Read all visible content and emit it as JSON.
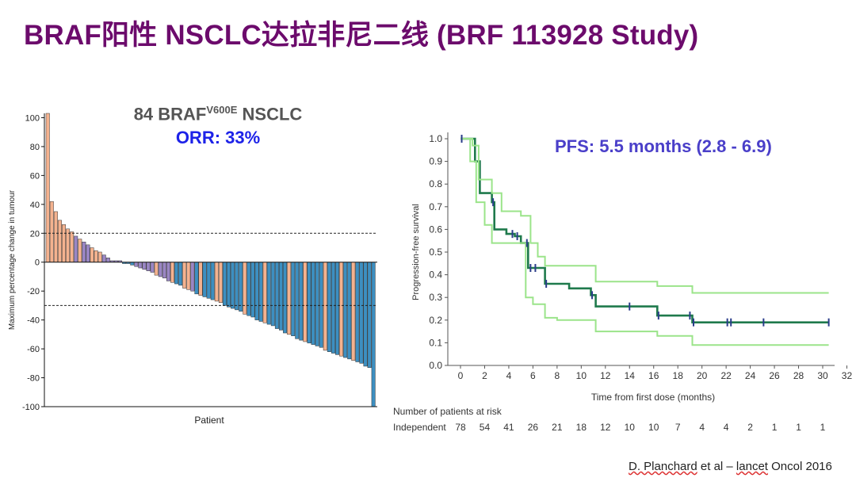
{
  "slide": {
    "title": "BRAF阳性 NSCLC达拉非尼二线 (BRF 113928 Study)",
    "citation_author": "D. Planchard",
    "citation_rest": " et al – ",
    "citation_journal": "lancet",
    "citation_end": " Oncol 2016"
  },
  "waterfall": {
    "subtitle_prefix": "84 BRAF",
    "subtitle_sup": "V600E",
    "subtitle_suffix": " NSCLC",
    "orr_label": "ORR: 33%"
  },
  "pfs": {
    "label": "PFS: 5.5 months (2.8 - 6.9)",
    "risk_header": "Number of patients at risk",
    "risk_row_label": "Independent"
  },
  "colors": {
    "title": "#6c0b6c",
    "bar_salmon": "#f4b28f",
    "bar_purple": "#9a86c4",
    "bar_blue": "#3d8fc1",
    "km_median": "#1f7a4c",
    "km_ci": "#9be48a",
    "censor": "#2a3c8a"
  },
  "chart_data": [
    {
      "type": "bar",
      "title": "",
      "xlabel": "Patient",
      "ylabel": "Maximum percentage change in tumour",
      "ylim": [
        -100,
        110
      ],
      "yticks": [
        100,
        80,
        60,
        40,
        20,
        0,
        -20,
        -40,
        -60,
        -80,
        -100
      ],
      "reference_lines": [
        20,
        -30
      ],
      "grid": false,
      "values": [
        110,
        42,
        35,
        29,
        26,
        23,
        21,
        18,
        16,
        14,
        12,
        10,
        8,
        7,
        5,
        3,
        1,
        1,
        1,
        -1,
        -1,
        -2,
        -3,
        -4,
        -5,
        -6,
        -7,
        -9,
        -10,
        -11,
        -13,
        -14,
        -15,
        -16,
        -18,
        -19,
        -20,
        -22,
        -23,
        -24,
        -25,
        -26,
        -27,
        -28,
        -30,
        -31,
        -32,
        -33,
        -34,
        -36,
        -37,
        -38,
        -40,
        -41,
        -42,
        -43,
        -44,
        -46,
        -47,
        -49,
        -50,
        -51,
        -53,
        -54,
        -55,
        -56,
        -57,
        -58,
        -59,
        -61,
        -62,
        -63,
        -64,
        -65,
        -66,
        -67,
        -68,
        -69,
        -70,
        -72,
        -73,
        -100
      ],
      "colors": [
        "s",
        "s",
        "s",
        "s",
        "s",
        "s",
        "s",
        "p",
        "s",
        "p",
        "p",
        "s",
        "s",
        "s",
        "p",
        "p",
        "p",
        "p",
        "p",
        "b",
        "b",
        "b",
        "p",
        "p",
        "p",
        "p",
        "p",
        "s",
        "p",
        "p",
        "p",
        "s",
        "b",
        "b",
        "s",
        "s",
        "p",
        "b",
        "s",
        "b",
        "b",
        "b",
        "s",
        "s",
        "b",
        "b",
        "b",
        "b",
        "b",
        "s",
        "b",
        "b",
        "b",
        "b",
        "s",
        "b",
        "b",
        "b",
        "b",
        "b",
        "s",
        "b",
        "b",
        "b",
        "s",
        "b",
        "b",
        "b",
        "b",
        "s",
        "b",
        "b",
        "b",
        "s",
        "b",
        "b",
        "s",
        "b",
        "b",
        "b",
        "b",
        "b"
      ]
    },
    {
      "type": "line",
      "title": "",
      "xlabel": "Time from first dose (months)",
      "ylabel": "Progression-free survival",
      "xlim": [
        0,
        32
      ],
      "ylim": [
        0,
        1.0
      ],
      "xticks": [
        0,
        2,
        4,
        6,
        8,
        10,
        12,
        14,
        16,
        18,
        20,
        22,
        24,
        26,
        28,
        30,
        32
      ],
      "yticks": [
        0,
        0.1,
        0.2,
        0.3,
        0.4,
        0.5,
        0.6,
        0.7,
        0.8,
        0.9,
        1.0
      ],
      "series": [
        {
          "role": "median",
          "x": [
            0,
            1.2,
            1.6,
            2.6,
            2.8,
            3.8,
            4.5,
            5.0,
            5.6,
            6.0,
            7.0,
            9.0,
            10.8,
            11.2,
            16.3,
            19.2,
            30.5
          ],
          "y": [
            1.0,
            0.9,
            0.76,
            0.72,
            0.6,
            0.58,
            0.57,
            0.54,
            0.43,
            0.43,
            0.36,
            0.34,
            0.31,
            0.26,
            0.22,
            0.19,
            0.19
          ]
        },
        {
          "role": "upper_ci",
          "x": [
            0,
            1.0,
            1.5,
            2.6,
            3.4,
            5.0,
            5.8,
            6.4,
            7.0,
            11.2,
            16.3,
            19.2,
            30.5
          ],
          "y": [
            1.0,
            0.97,
            0.82,
            0.76,
            0.68,
            0.66,
            0.54,
            0.48,
            0.44,
            0.37,
            0.35,
            0.32,
            0.32
          ]
        },
        {
          "role": "lower_ci",
          "x": [
            0,
            0.8,
            1.3,
            2.0,
            2.6,
            5.4,
            6.0,
            7.0,
            8.0,
            11.2,
            16.3,
            19.2,
            30.5
          ],
          "y": [
            1.0,
            0.9,
            0.72,
            0.62,
            0.54,
            0.3,
            0.27,
            0.21,
            0.2,
            0.15,
            0.13,
            0.09,
            0.09
          ]
        }
      ],
      "censor_x": [
        0.1,
        2.7,
        4.3,
        4.7,
        5.5,
        5.8,
        6.2,
        7.1,
        10.9,
        14.0,
        16.4,
        19.0,
        19.3,
        22.1,
        22.4,
        25.1,
        30.5
      ],
      "at_risk": [
        78,
        54,
        41,
        26,
        21,
        18,
        12,
        10,
        10,
        7,
        4,
        4,
        2,
        1,
        1,
        1
      ]
    }
  ]
}
